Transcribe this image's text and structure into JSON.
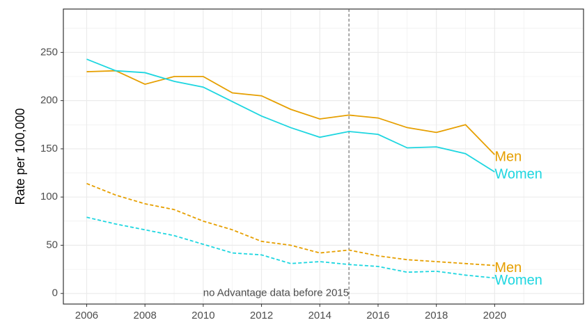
{
  "chart_data": {
    "type": "line",
    "y_label": "Rate per 100,000",
    "x": [
      2006,
      2007,
      2008,
      2009,
      2010,
      2011,
      2012,
      2013,
      2014,
      2015,
      2016,
      2017,
      2018,
      2019,
      2020
    ],
    "series": [
      {
        "name": "Men",
        "color": "#E69F00",
        "dashed": false,
        "values": [
          230,
          231,
          217,
          225,
          225,
          208,
          205,
          191,
          181,
          185,
          182,
          172,
          167,
          175,
          144
        ]
      },
      {
        "name": "Women",
        "color": "#1ED6E0",
        "dashed": false,
        "values": [
          243,
          231,
          229,
          220,
          214,
          199,
          184,
          172,
          162,
          168,
          165,
          151,
          152,
          145,
          126
        ]
      },
      {
        "name": "Men",
        "color": "#E69F00",
        "dashed": true,
        "values": [
          114,
          102,
          93,
          87,
          75,
          66,
          54,
          50,
          42,
          45,
          39,
          35,
          33,
          31,
          29
        ]
      },
      {
        "name": "Women",
        "color": "#1ED6E0",
        "dashed": true,
        "values": [
          79,
          72,
          66,
          60,
          51,
          42,
          40,
          31,
          33,
          30,
          28,
          22,
          23,
          19,
          16
        ]
      }
    ],
    "xlim": [
      2005.2,
      2023.05
    ],
    "xticks": [
      2006,
      2008,
      2010,
      2012,
      2014,
      2016,
      2018,
      2020
    ],
    "ylim": [
      -11,
      295
    ],
    "yticks": [
      0,
      50,
      100,
      150,
      200,
      250
    ],
    "grid": true,
    "vline": 2015,
    "vline_label": "no Advantage data before 2015"
  }
}
